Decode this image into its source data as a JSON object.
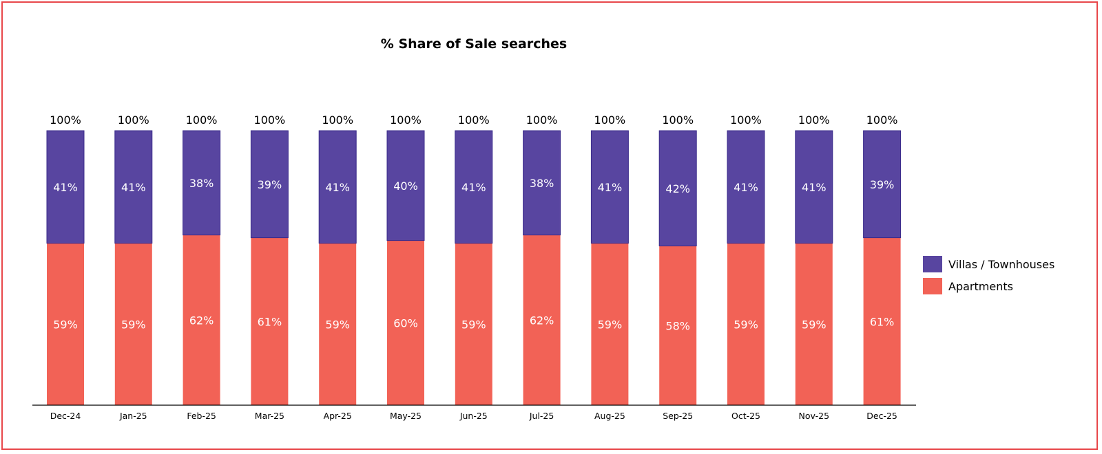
{
  "chart_data": {
    "type": "bar",
    "stacked": true,
    "title": "% Share of Sale searches",
    "categories": [
      "Dec-24",
      "Jan-25",
      "Feb-25",
      "Mar-25",
      "Apr-25",
      "May-25",
      "Jun-25",
      "Jul-25",
      "Aug-25",
      "Sep-25",
      "Oct-25",
      "Nov-25",
      "Dec-25"
    ],
    "series": [
      {
        "name": "Apartments",
        "color": "#f26256",
        "values": [
          59,
          59,
          62,
          61,
          59,
          60,
          59,
          62,
          59,
          58,
          59,
          59,
          61
        ]
      },
      {
        "name": "Villas / Townhouses",
        "color": "#5845a0",
        "values": [
          41,
          41,
          38,
          39,
          41,
          40,
          41,
          38,
          41,
          42,
          41,
          41,
          39
        ]
      }
    ],
    "totals": [
      100,
      100,
      100,
      100,
      100,
      100,
      100,
      100,
      100,
      100,
      100,
      100,
      100
    ],
    "value_suffix": "%",
    "ylim": [
      0,
      100
    ],
    "grid": false,
    "legend_position": "right"
  }
}
